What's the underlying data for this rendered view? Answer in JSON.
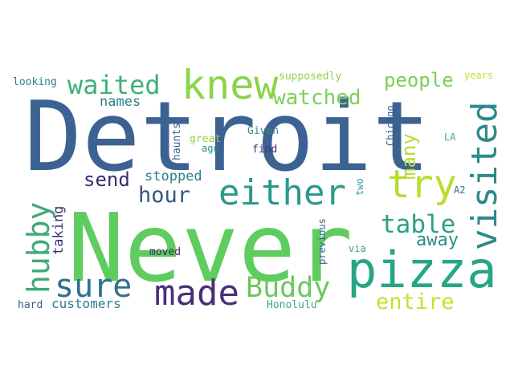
{
  "words": [
    {
      "text": "Detroit",
      "color": "#3b6291"
    },
    {
      "text": "Never",
      "color": "#5fcc5f"
    },
    {
      "text": "pizza",
      "color": "#27a587"
    },
    {
      "text": "knew",
      "color": "#8bd44a"
    },
    {
      "text": "visited",
      "color": "#2d8a8a"
    },
    {
      "text": "either",
      "color": "#2a9a8c"
    },
    {
      "text": "try",
      "color": "#b7de2e"
    },
    {
      "text": "made",
      "color": "#4a2f78"
    },
    {
      "text": "Buddy",
      "color": "#6bc85a"
    },
    {
      "text": "sure",
      "color": "#2f6f8f"
    },
    {
      "text": "hubby",
      "color": "#3ea97a"
    },
    {
      "text": "waited",
      "color": "#3fb07a"
    },
    {
      "text": "watched",
      "color": "#7cd155"
    },
    {
      "text": "table",
      "color": "#2ca084"
    },
    {
      "text": "entire",
      "color": "#c9df2a"
    },
    {
      "text": "hour",
      "color": "#35577f"
    },
    {
      "text": "people",
      "color": "#7ccf57"
    },
    {
      "text": "many",
      "color": "#b3dc33"
    },
    {
      "text": "away",
      "color": "#2a8b88"
    },
    {
      "text": "send",
      "color": "#3d2a6e"
    },
    {
      "text": "stopped",
      "color": "#2b7f8a"
    },
    {
      "text": "names",
      "color": "#2b7f8a"
    },
    {
      "text": "taking",
      "color": "#3b2f6e"
    },
    {
      "text": "customers",
      "color": "#2c7d8d"
    },
    {
      "text": "moved",
      "color": "#3b2a6e"
    },
    {
      "text": "haunts",
      "color": "#38658c"
    },
    {
      "text": "great",
      "color": "#8fd247"
    },
    {
      "text": "ago",
      "color": "#2b8a8a"
    },
    {
      "text": "Given",
      "color": "#3a8a8a"
    },
    {
      "text": "find",
      "color": "#4a2e76"
    },
    {
      "text": "Chicago",
      "color": "#3b5d8d"
    },
    {
      "text": "two",
      "color": "#3fa0a0"
    },
    {
      "text": "LA",
      "color": "#3fa89a"
    },
    {
      "text": "A2",
      "color": "#2f6f8f"
    },
    {
      "text": "years",
      "color": "#c9df2a"
    },
    {
      "text": "supposedly",
      "color": "#8fd247"
    },
    {
      "text": "looking",
      "color": "#2b7f8a"
    },
    {
      "text": "previous",
      "color": "#3b6291"
    },
    {
      "text": "via",
      "color": "#3fa089"
    },
    {
      "text": "hard",
      "color": "#3b5d8d"
    },
    {
      "text": "Honolulu",
      "color": "#3fa87a"
    }
  ]
}
